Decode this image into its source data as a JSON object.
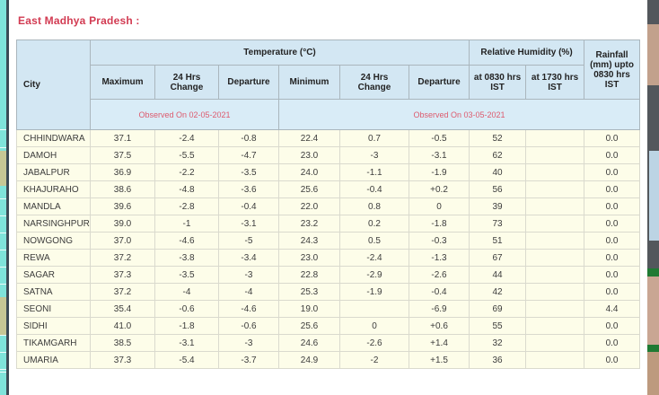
{
  "page": {
    "title": "East Madhya Pradesh :"
  },
  "colors": {
    "title_red": "#d23b52",
    "observed_red": "#dd5a6e",
    "header_blue": "#d3e7f3",
    "observed_row_blue": "#d9ecf7",
    "data_row_cream": "#fdfde9",
    "left_strip_teal": "#7fe3da",
    "left_strip_olive": "#c6c795"
  },
  "table": {
    "header": {
      "city": "City",
      "temperature_group": "Temperature (°C)",
      "humidity_group": "Relative Humidity (%)",
      "rainfall": "Rainfall (mm) upto 0830 hrs IST",
      "sub": [
        "Maximum",
        "24 Hrs Change",
        "Departure",
        "Minimum",
        "24 Hrs Change",
        "Departure",
        "at 0830 hrs IST",
        "at 1730 hrs IST"
      ],
      "observed_left": "Observed On 02-05-2021",
      "observed_right": "Observed On 03-05-2021"
    },
    "rows": [
      {
        "city": "CHHINDWARA",
        "values": [
          "37.1",
          "-2.4",
          "-0.8",
          "22.4",
          "0.7",
          "-0.5",
          "52",
          "",
          "0.0"
        ]
      },
      {
        "city": "DAMOH",
        "values": [
          "37.5",
          "-5.5",
          "-4.7",
          "23.0",
          "-3",
          "-3.1",
          "62",
          "",
          "0.0"
        ]
      },
      {
        "city": "JABALPUR",
        "values": [
          "36.9",
          "-2.2",
          "-3.5",
          "24.0",
          "-1.1",
          "-1.9",
          "40",
          "",
          "0.0"
        ]
      },
      {
        "city": "KHAJURAHO",
        "values": [
          "38.6",
          "-4.8",
          "-3.6",
          "25.6",
          "-0.4",
          "+0.2",
          "56",
          "",
          "0.0"
        ]
      },
      {
        "city": "MANDLA",
        "values": [
          "39.6",
          "-2.8",
          "-0.4",
          "22.0",
          "0.8",
          "0",
          "39",
          "",
          "0.0"
        ]
      },
      {
        "city": "NARSINGHPUR",
        "values": [
          "39.0",
          "-1",
          "-3.1",
          "23.2",
          "0.2",
          "-1.8",
          "73",
          "",
          "0.0"
        ]
      },
      {
        "city": "NOWGONG",
        "values": [
          "37.0",
          "-4.6",
          "-5",
          "24.3",
          "0.5",
          "-0.3",
          "51",
          "",
          "0.0"
        ]
      },
      {
        "city": "REWA",
        "values": [
          "37.2",
          "-3.8",
          "-3.4",
          "23.0",
          "-2.4",
          "-1.3",
          "67",
          "",
          "0.0"
        ]
      },
      {
        "city": "SAGAR",
        "values": [
          "37.3",
          "-3.5",
          "-3",
          "22.8",
          "-2.9",
          "-2.6",
          "44",
          "",
          "0.0"
        ]
      },
      {
        "city": "SATNA",
        "values": [
          "37.2",
          "-4",
          "-4",
          "25.3",
          "-1.9",
          "-0.4",
          "42",
          "",
          "0.0"
        ]
      },
      {
        "city": "SEONI",
        "values": [
          "35.4",
          "-0.6",
          "-4.6",
          "19.0",
          "",
          "-6.9",
          "69",
          "",
          "4.4"
        ]
      },
      {
        "city": "SIDHI",
        "values": [
          "41.0",
          "-1.8",
          "-0.6",
          "25.6",
          "0",
          "+0.6",
          "55",
          "",
          "0.0"
        ]
      },
      {
        "city": "TIKAMGARH",
        "values": [
          "38.5",
          "-3.1",
          "-3",
          "24.6",
          "-2.6",
          "+1.4",
          "32",
          "",
          "0.0"
        ]
      },
      {
        "city": "UMARIA",
        "values": [
          "37.3",
          "-5.4",
          "-3.7",
          "24.9",
          "-2",
          "+1.5",
          "36",
          "",
          "0.0"
        ]
      }
    ]
  }
}
